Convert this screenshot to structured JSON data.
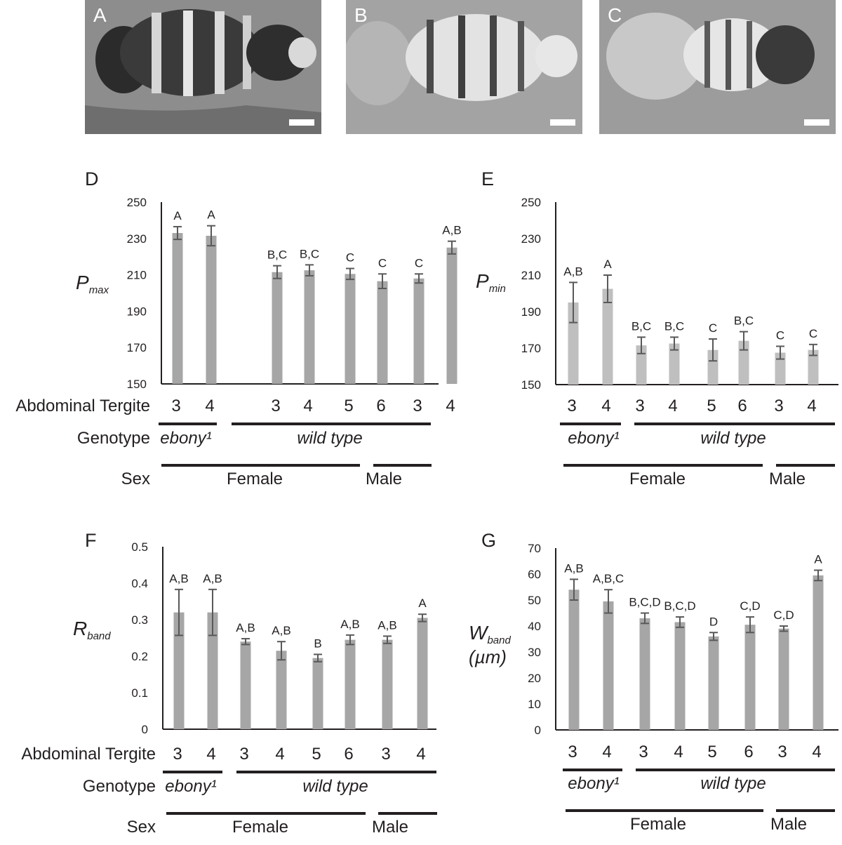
{
  "photos": [
    {
      "label": "A"
    },
    {
      "label": "B"
    },
    {
      "label": "C"
    }
  ],
  "colors": {
    "bar_dark": "#a6a6a6",
    "bar_light": "#bfbfbf",
    "error_bar": "#595959",
    "axis": "#231f20"
  },
  "chart_data": [
    {
      "panel": "D",
      "type": "bar",
      "ylabel_main": "P",
      "ylabel_sub": "max",
      "ylim": [
        150,
        250
      ],
      "yticks": [
        150,
        170,
        190,
        210,
        230,
        250
      ],
      "categories": [
        "3",
        "4",
        "3",
        "4",
        "5",
        "6",
        "3",
        "4"
      ],
      "values": [
        233,
        231.5,
        211.5,
        212.5,
        210.5,
        206.5,
        208,
        225
      ],
      "errors": [
        3.5,
        5.5,
        3.5,
        3,
        3,
        4,
        2.5,
        3.5
      ],
      "significance": [
        "A",
        "A",
        "B,C",
        "B,C",
        "C",
        "C",
        "C",
        "A,B"
      ],
      "row_labels": {
        "tergite": "Abdominal Tergite",
        "genotype": "Genotype",
        "sex": "Sex"
      },
      "genotype_groups": [
        "ebony¹",
        "wild type"
      ],
      "sex_groups": [
        "Female",
        "Male"
      ]
    },
    {
      "panel": "E",
      "type": "bar",
      "ylabel_main": "P",
      "ylabel_sub": "min",
      "ylim": [
        150,
        250
      ],
      "yticks": [
        150,
        170,
        190,
        210,
        230,
        250
      ],
      "categories": [
        "3",
        "4",
        "3",
        "4",
        "5",
        "6",
        "3",
        "4"
      ],
      "values": [
        195,
        202.5,
        171.5,
        172.5,
        169,
        174,
        167.5,
        169
      ],
      "errors": [
        11,
        7.5,
        4.5,
        3.5,
        6,
        5,
        3.5,
        3
      ],
      "significance": [
        "A,B",
        "A",
        "B,C",
        "B,C",
        "C",
        "B,C",
        "C",
        "C"
      ],
      "row_labels": {
        "tergite": "",
        "genotype": "",
        "sex": ""
      },
      "genotype_groups": [
        "ebony¹",
        "wild type"
      ],
      "sex_groups": [
        "Female",
        "Male"
      ]
    },
    {
      "panel": "F",
      "type": "bar",
      "ylabel_main": "R",
      "ylabel_sub": "band",
      "ylim": [
        0,
        0.5
      ],
      "yticks": [
        0,
        0.1,
        0.2,
        0.3,
        0.4,
        0.5
      ],
      "categories": [
        "3",
        "4",
        "3",
        "4",
        "5",
        "6",
        "3",
        "4"
      ],
      "values": [
        0.32,
        0.32,
        0.24,
        0.215,
        0.195,
        0.245,
        0.245,
        0.305
      ],
      "errors": [
        0.063,
        0.063,
        0.008,
        0.025,
        0.01,
        0.013,
        0.01,
        0.01
      ],
      "significance": [
        "A,B",
        "A,B",
        "A,B",
        "A,B",
        "B",
        "A,B",
        "A,B",
        "A"
      ],
      "row_labels": {
        "tergite": "Abdominal Tergite",
        "genotype": "Genotype",
        "sex": "Sex"
      },
      "genotype_groups": [
        "ebony¹",
        "wild type"
      ],
      "sex_groups": [
        "Female",
        "Male"
      ]
    },
    {
      "panel": "G",
      "type": "bar",
      "ylabel_main": "W",
      "ylabel_sub": "band",
      "ylabel_unit": "(µm)",
      "ylim": [
        0,
        70
      ],
      "yticks": [
        0,
        10,
        20,
        30,
        40,
        50,
        60,
        70
      ],
      "categories": [
        "3",
        "4",
        "3",
        "4",
        "5",
        "6",
        "3",
        "4"
      ],
      "values": [
        54,
        49.5,
        43,
        41.5,
        36,
        40.5,
        39,
        59.5
      ],
      "errors": [
        4,
        4.5,
        2,
        2,
        1.5,
        3,
        1,
        2
      ],
      "significance": [
        "A,B",
        "A,B,C",
        "B,C,D",
        "B,C,D",
        "D",
        "C,D",
        "C,D",
        "A"
      ],
      "row_labels": {
        "tergite": "",
        "genotype": "",
        "sex": ""
      },
      "genotype_groups": [
        "ebony¹",
        "wild type"
      ],
      "sex_groups": [
        "Female",
        "Male"
      ]
    }
  ]
}
